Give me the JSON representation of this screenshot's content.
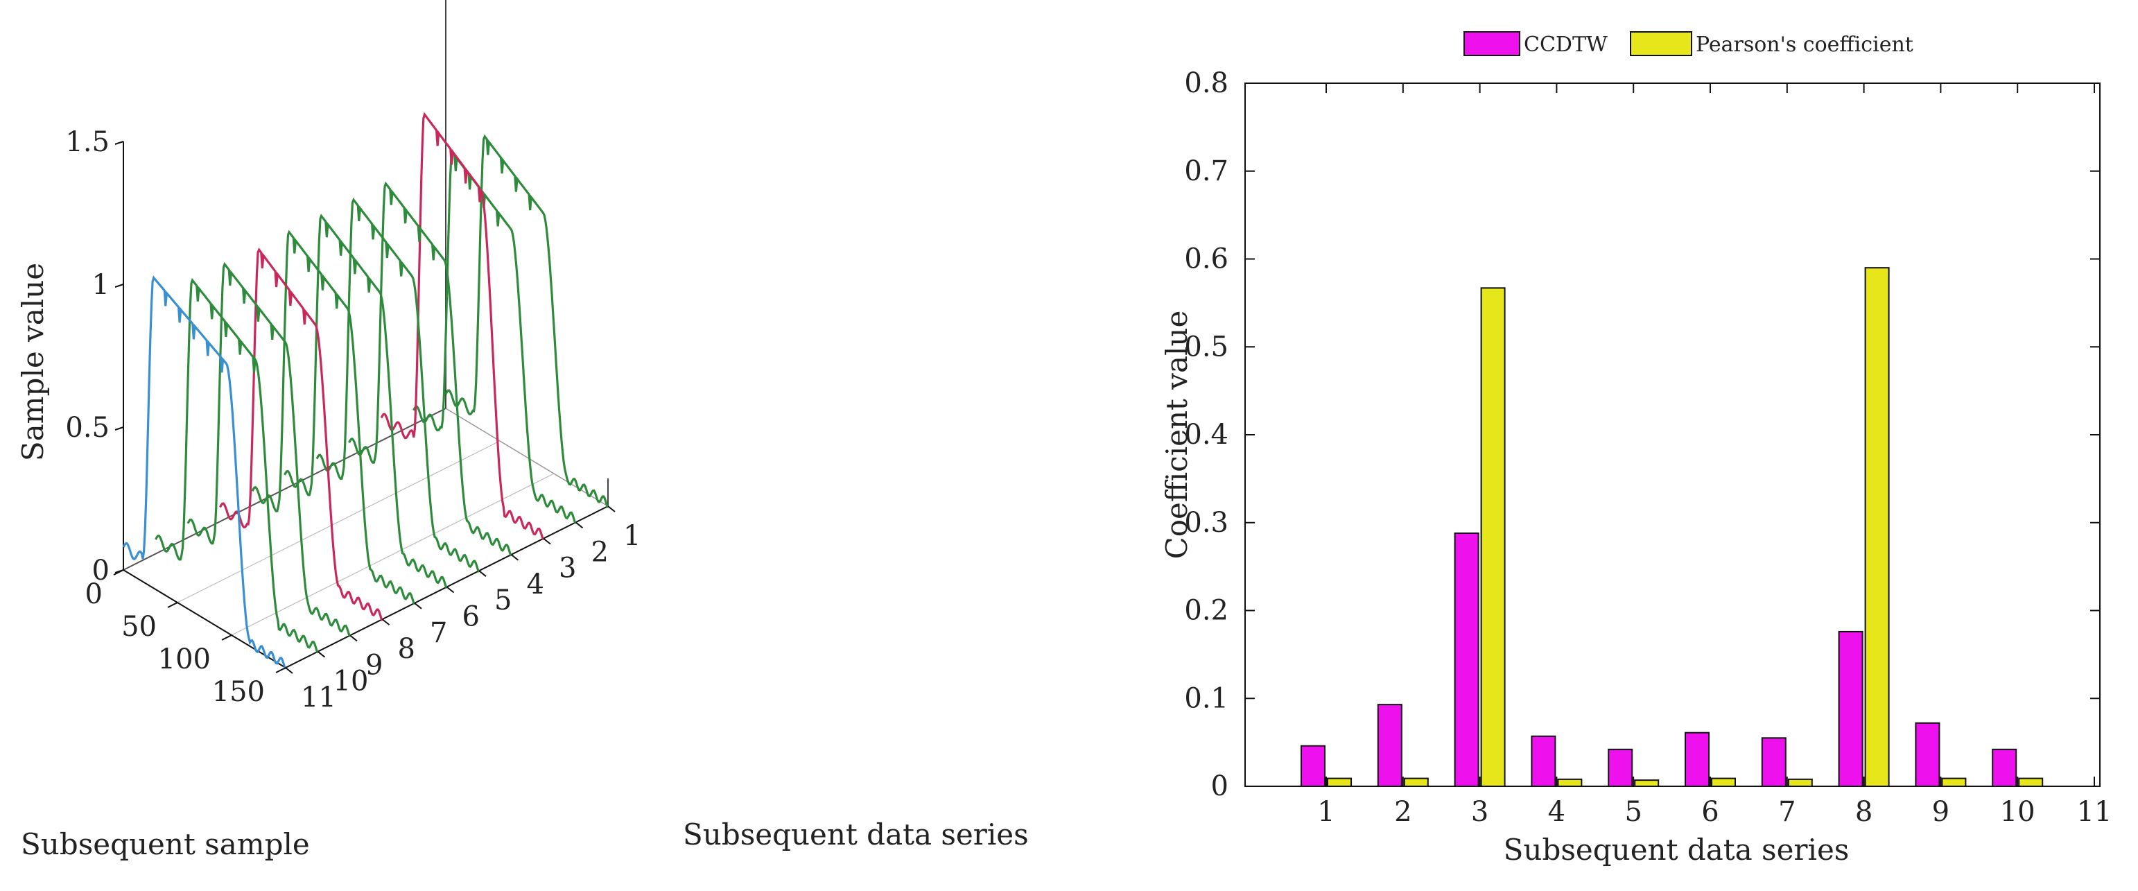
{
  "chart_data": [
    {
      "type": "line3d",
      "title": "",
      "zlabel": "Sample value",
      "xlabel": "Subsequent sample",
      "ylabel": "Subsequent data series",
      "zlim": [
        0,
        1.5
      ],
      "z_ticks": [
        "0",
        "0.5",
        "1",
        "1.5"
      ],
      "x_ticks": [
        "0",
        "50",
        "100",
        "150"
      ],
      "series_ticks": [
        "1",
        "2",
        "3",
        "4",
        "5",
        "6",
        "7",
        "8",
        "9",
        "10",
        "11"
      ],
      "colors": {
        "reference": "#3a8fd0",
        "matched": "#c8285a",
        "other": "#2e8b3c"
      },
      "series": [
        {
          "name": "11",
          "role": "reference",
          "base": 0.08,
          "plateau": 1.1,
          "rise": 22,
          "fall": 95
        },
        {
          "name": "10",
          "role": "other",
          "base": 0.05,
          "plateau": 1.05,
          "rise": 28,
          "fall": 92
        },
        {
          "name": "9",
          "role": "other",
          "base": 0.05,
          "plateau": 1.05,
          "rise": 28,
          "fall": 90
        },
        {
          "name": "8",
          "role": "matched",
          "base": 0.05,
          "plateau": 1.05,
          "rise": 30,
          "fall": 88
        },
        {
          "name": "7",
          "role": "other",
          "base": 0.05,
          "plateau": 1.05,
          "rise": 28,
          "fall": 88
        },
        {
          "name": "6",
          "role": "other",
          "base": 0.05,
          "plateau": 1.05,
          "rise": 28,
          "fall": 88
        },
        {
          "name": "5",
          "role": "other",
          "base": 0.05,
          "plateau": 1.05,
          "rise": 28,
          "fall": 88
        },
        {
          "name": "4",
          "role": "other",
          "base": 0.05,
          "plateau": 1.05,
          "rise": 28,
          "fall": 88
        },
        {
          "name": "3",
          "role": "matched",
          "base": 0.08,
          "plateau": 1.25,
          "rise": 34,
          "fall": 92
        },
        {
          "name": "2",
          "role": "other",
          "base": 0.05,
          "plateau": 1.05,
          "rise": 30,
          "fall": 90
        },
        {
          "name": "1",
          "role": "other",
          "base": 0.05,
          "plateau": 1.05,
          "rise": 30,
          "fall": 90
        }
      ]
    },
    {
      "type": "bar",
      "title": "",
      "xlabel": "Subsequent data series",
      "ylabel": "Coefficient value",
      "ylim": [
        0,
        0.8
      ],
      "y_ticks": [
        "0",
        "0.1",
        "0.2",
        "0.3",
        "0.4",
        "0.5",
        "0.6",
        "0.7",
        "0.8"
      ],
      "x_ticks": [
        "1",
        "2",
        "3",
        "4",
        "5",
        "6",
        "7",
        "8",
        "9",
        "10",
        "11"
      ],
      "categories": [
        "1",
        "2",
        "3",
        "4",
        "5",
        "6",
        "7",
        "8",
        "9",
        "10"
      ],
      "legend_position": "top",
      "series": [
        {
          "name": "CCDTW",
          "color": "#ee11ee",
          "values": [
            0.046,
            0.093,
            0.288,
            0.057,
            0.042,
            0.061,
            0.055,
            0.176,
            0.072,
            0.042
          ]
        },
        {
          "name": "Pearson's coefficient",
          "color": "#e6e61a",
          "values": [
            0.009,
            0.009,
            0.567,
            0.008,
            0.007,
            0.009,
            0.008,
            0.59,
            0.009,
            0.009
          ]
        }
      ]
    }
  ]
}
